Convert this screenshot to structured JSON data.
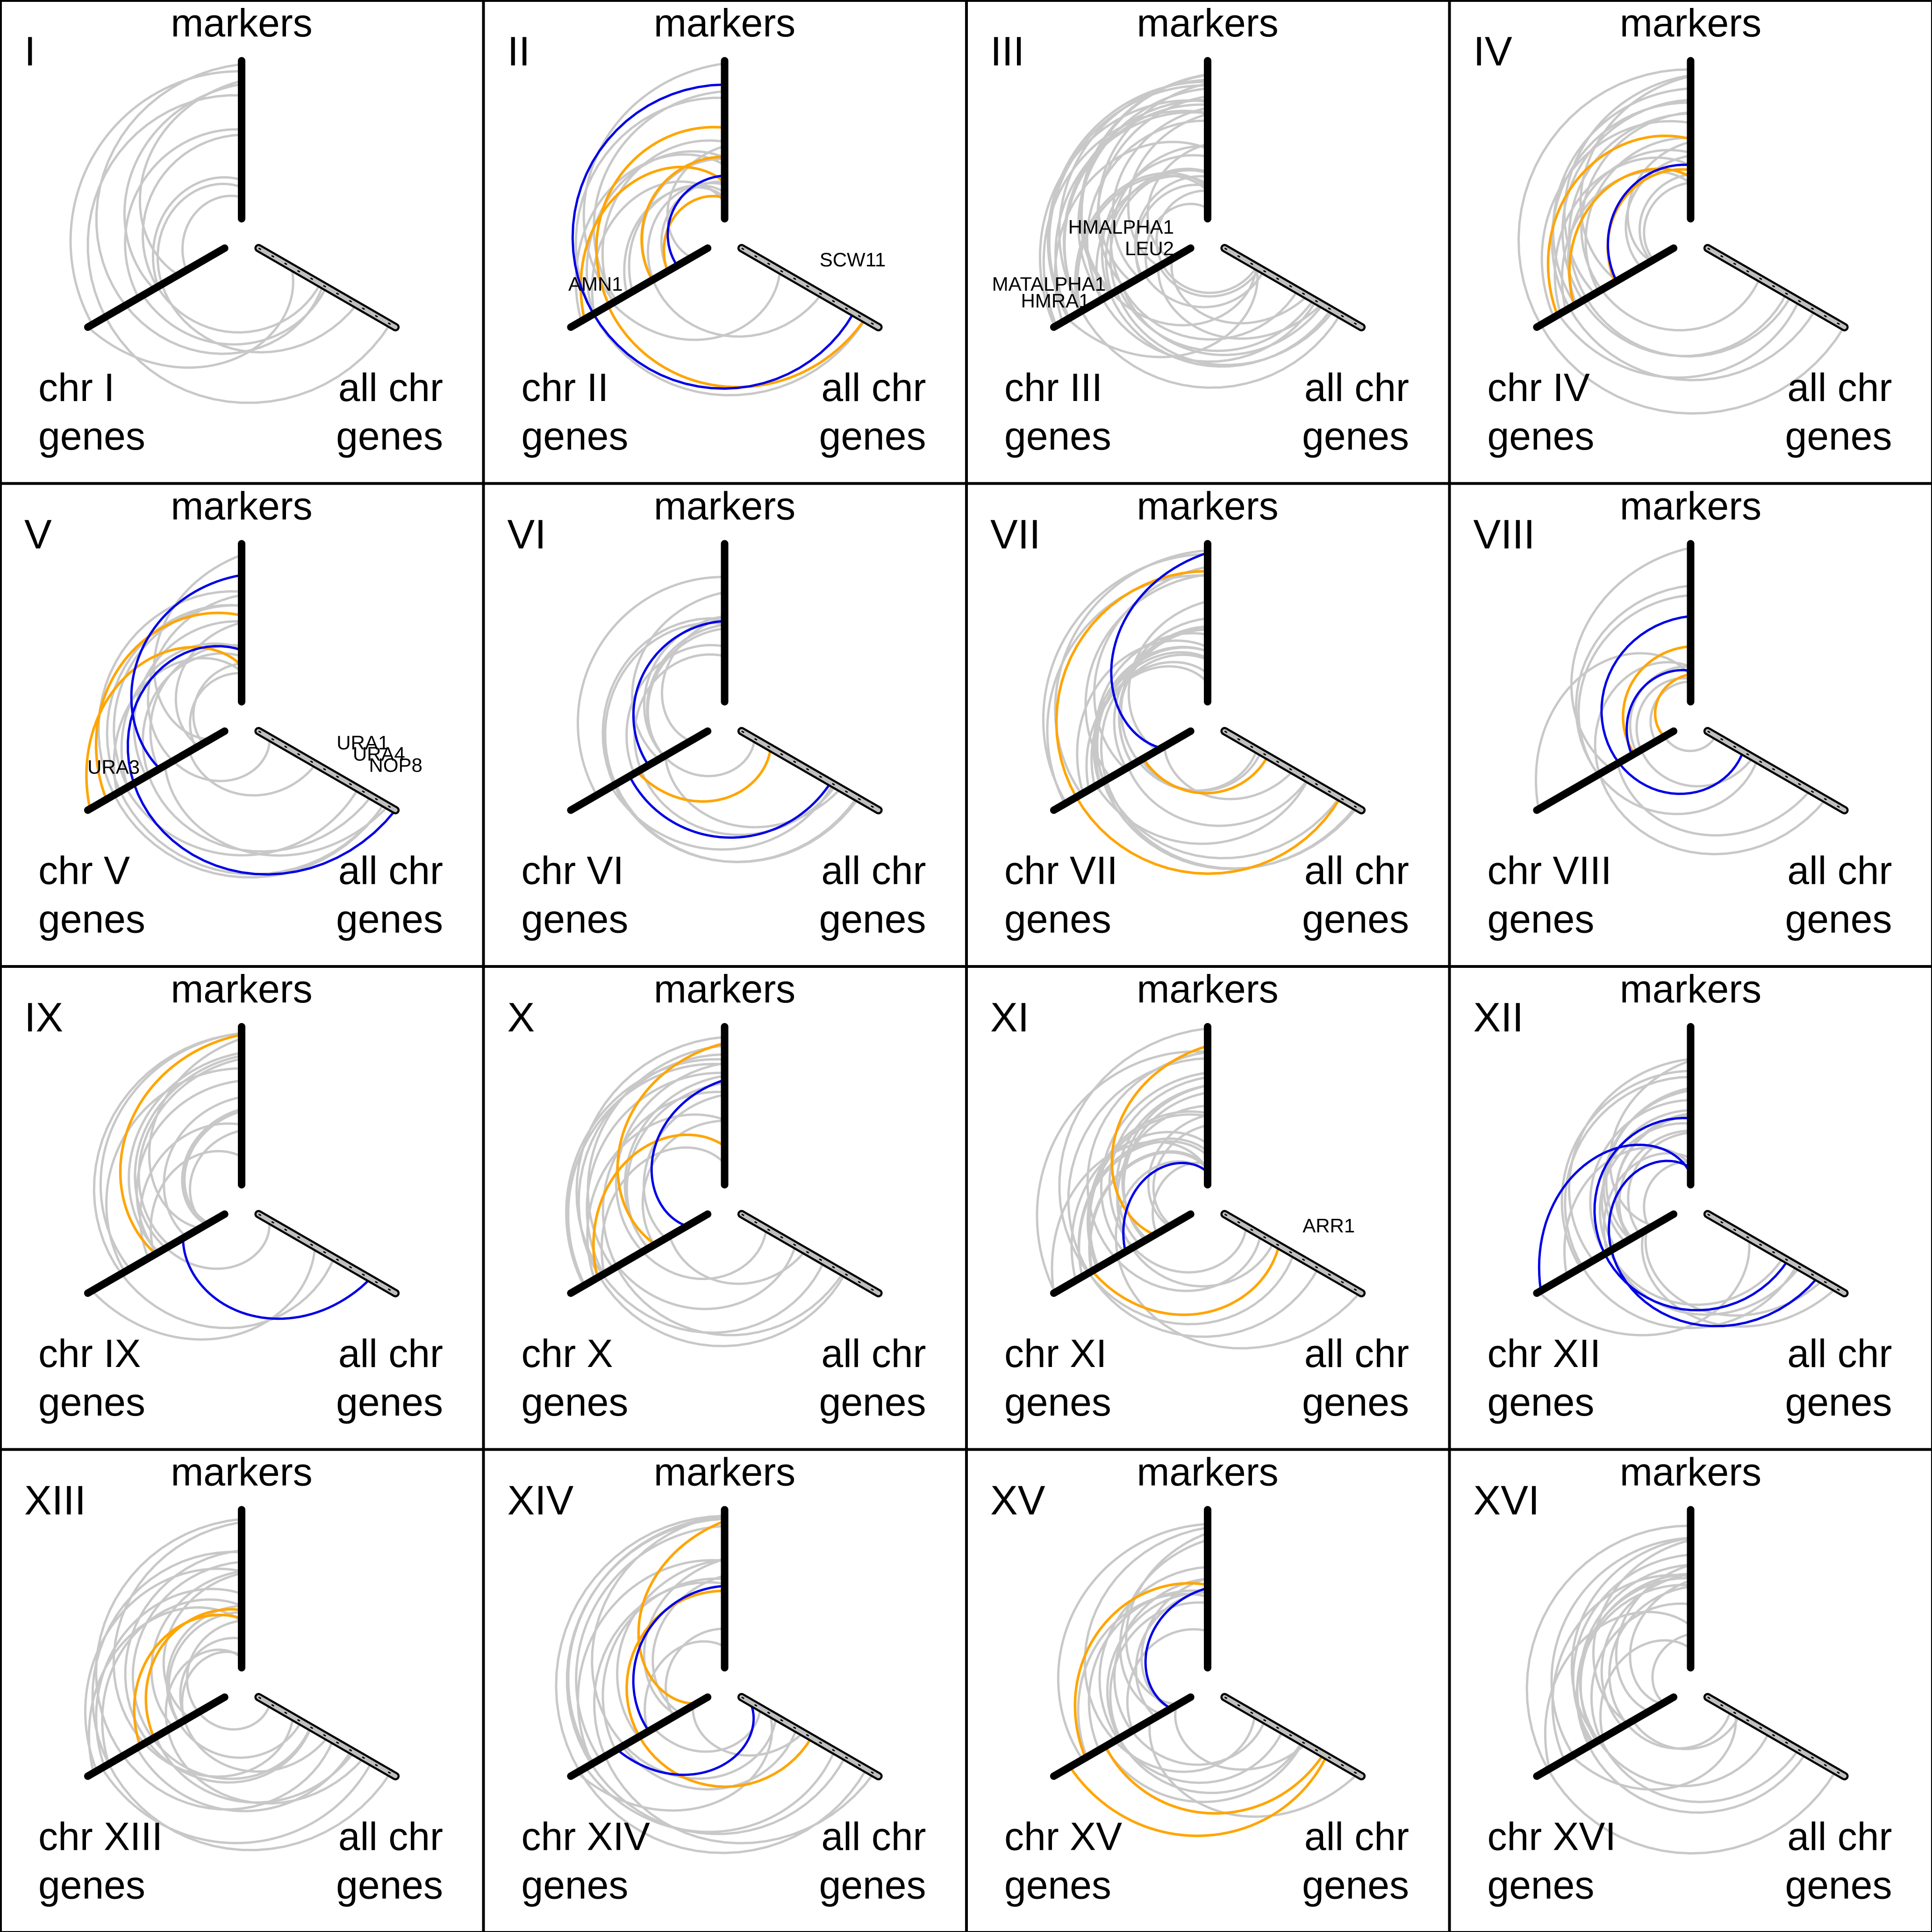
{
  "figure": {
    "colors": {
      "background": "#ffffff",
      "border": "#000000",
      "axis": "#000000",
      "link_gray": "#c8c8c8",
      "link_orange": "#ffa500",
      "link_blue": "#0000e6",
      "gene_axis_fill": "#bfbfbf"
    },
    "axis_labels": {
      "markers": "markers",
      "chr_prefix": "chr",
      "genes": "genes",
      "all_chr": "all chr"
    },
    "panels": [
      {
        "numeral": "I",
        "chr_label": "chr I",
        "annotations": [],
        "links": {
          "gray": 12,
          "orange": 0,
          "blue": 0
        }
      },
      {
        "numeral": "II",
        "chr_label": "chr II",
        "annotations": [
          {
            "text": "AMN1",
            "anchor": "chr-left"
          },
          {
            "text": "SCW11",
            "anchor": "gene-right"
          }
        ],
        "links": {
          "gray": 14,
          "orange": 5,
          "blue": 2
        }
      },
      {
        "numeral": "III",
        "chr_label": "chr III",
        "annotations": [
          {
            "text": "HMALPHA1",
            "anchor": "chr-top"
          },
          {
            "text": "LEU2",
            "anchor": "chr-top"
          },
          {
            "text": "MATALPHA1",
            "anchor": "chr-left"
          },
          {
            "text": "HMRA1",
            "anchor": "chr-left"
          }
        ],
        "links": {
          "gray": 36,
          "orange": 0,
          "blue": 0
        }
      },
      {
        "numeral": "IV",
        "chr_label": "chr IV",
        "annotations": [],
        "links": {
          "gray": 18,
          "orange": 3,
          "blue": 1
        }
      },
      {
        "numeral": "V",
        "chr_label": "chr V",
        "annotations": [
          {
            "text": "URA3",
            "anchor": "chr-left"
          },
          {
            "text": "URA1",
            "anchor": "gene-right"
          },
          {
            "text": "URA4",
            "anchor": "gene-right"
          },
          {
            "text": "NOP8",
            "anchor": "gene-right"
          }
        ],
        "links": {
          "gray": 16,
          "orange": 2,
          "blue": 2
        }
      },
      {
        "numeral": "VI",
        "chr_label": "chr VI",
        "annotations": [],
        "links": {
          "gray": 12,
          "orange": 1,
          "blue": 2
        }
      },
      {
        "numeral": "VII",
        "chr_label": "chr VII",
        "annotations": [],
        "links": {
          "gray": 22,
          "orange": 2,
          "blue": 1
        }
      },
      {
        "numeral": "VIII",
        "chr_label": "chr VIII",
        "annotations": [],
        "links": {
          "gray": 10,
          "orange": 2,
          "blue": 2
        }
      },
      {
        "numeral": "IX",
        "chr_label": "chr IX",
        "annotations": [],
        "links": {
          "gray": 16,
          "orange": 1,
          "blue": 1
        }
      },
      {
        "numeral": "X",
        "chr_label": "chr X",
        "annotations": [],
        "links": {
          "gray": 16,
          "orange": 2,
          "blue": 1
        }
      },
      {
        "numeral": "XI",
        "chr_label": "chr XI",
        "annotations": [
          {
            "text": "ARR1",
            "anchor": "gene-right"
          }
        ],
        "links": {
          "gray": 22,
          "orange": 2,
          "blue": 1
        }
      },
      {
        "numeral": "XII",
        "chr_label": "chr XII",
        "annotations": [],
        "links": {
          "gray": 20,
          "orange": 0,
          "blue": 3
        }
      },
      {
        "numeral": "XIII",
        "chr_label": "chr XIII",
        "annotations": [],
        "links": {
          "gray": 20,
          "orange": 2,
          "blue": 0
        }
      },
      {
        "numeral": "XIV",
        "chr_label": "chr XIV",
        "annotations": [],
        "links": {
          "gray": 18,
          "orange": 2,
          "blue": 2
        }
      },
      {
        "numeral": "XV",
        "chr_label": "chr XV",
        "annotations": [],
        "links": {
          "gray": 16,
          "orange": 3,
          "blue": 1
        }
      },
      {
        "numeral": "XVI",
        "chr_label": "chr XVI",
        "annotations": [],
        "links": {
          "gray": 20,
          "orange": 0,
          "blue": 0
        }
      }
    ]
  }
}
